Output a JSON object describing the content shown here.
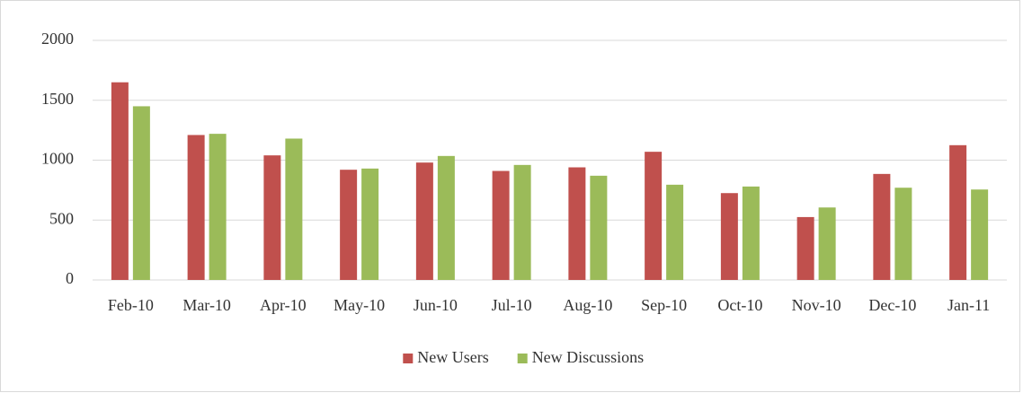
{
  "chart_data": {
    "type": "bar",
    "categories": [
      "Feb-10",
      "Mar-10",
      "Apr-10",
      "May-10",
      "Jun-10",
      "Jul-10",
      "Aug-10",
      "Sep-10",
      "Oct-10",
      "Nov-10",
      "Dec-10",
      "Jan-11"
    ],
    "series": [
      {
        "name": "New Users",
        "color": "#c0504d",
        "values": [
          1650,
          1210,
          1040,
          920,
          980,
          910,
          940,
          1070,
          725,
          525,
          885,
          1125
        ]
      },
      {
        "name": "New Discussions",
        "color": "#9bbb59",
        "values": [
          1450,
          1220,
          1180,
          930,
          1035,
          960,
          870,
          795,
          780,
          605,
          770,
          755
        ]
      }
    ],
    "ylim": [
      0,
      2000
    ],
    "yticks": [
      0,
      500,
      1000,
      1500,
      2000
    ],
    "grid": true,
    "legend": "bottom"
  }
}
